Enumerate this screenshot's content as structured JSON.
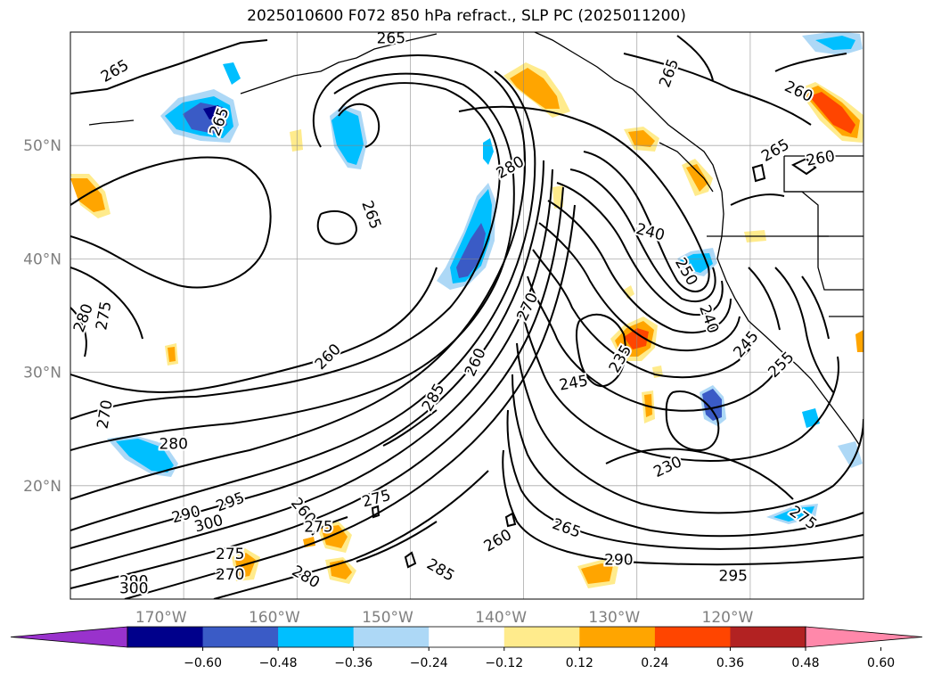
{
  "title": "2025010600 F072 850 hPa refract., SLP PC (2025011200)",
  "map": {
    "lat_labels": [
      {
        "text": "50°N",
        "lat": 50
      },
      {
        "text": "40°N",
        "lat": 40
      },
      {
        "text": "30°N",
        "lat": 30
      },
      {
        "text": "20°N",
        "lat": 20
      }
    ],
    "lon_labels": [
      {
        "text": "170°W",
        "lon": -170
      },
      {
        "text": "160°W",
        "lon": -160
      },
      {
        "text": "150°W",
        "lon": -150
      },
      {
        "text": "140°W",
        "lon": -140
      },
      {
        "text": "130°W",
        "lon": -130
      },
      {
        "text": "120°W",
        "lon": -120
      }
    ],
    "extent": {
      "lon_min": -178,
      "lon_max": -108,
      "lat_min": 10,
      "lat_max": 60
    },
    "gridlines": true,
    "contour_labels": [
      {
        "text": "265",
        "lon": -174.1,
        "lat": 56.6,
        "rot": -30
      },
      {
        "text": "265",
        "lon": -164.9,
        "lat": 52.1,
        "rot": -70
      },
      {
        "text": "265",
        "lon": -149.7,
        "lat": 59.5,
        "rot": 0
      },
      {
        "text": "265",
        "lon": -151.4,
        "lat": 43.9,
        "rot": 70
      },
      {
        "text": "280",
        "lon": -139.2,
        "lat": 48.1,
        "rot": -30
      },
      {
        "text": "265",
        "lon": -125.2,
        "lat": 56.4,
        "rot": -70
      },
      {
        "text": "260",
        "lon": -113.7,
        "lat": 54.8,
        "rot": 25
      },
      {
        "text": "265",
        "lon": -115.8,
        "lat": 49.6,
        "rot": -30
      },
      {
        "text": "260",
        "lon": -111.8,
        "lat": 48.9,
        "rot": -10
      },
      {
        "text": "240",
        "lon": -126.8,
        "lat": 42.4,
        "rot": 15
      },
      {
        "text": "250",
        "lon": -123.6,
        "lat": 38.9,
        "rot": 60
      },
      {
        "text": "240",
        "lon": -121.6,
        "lat": 34.7,
        "rot": 70
      },
      {
        "text": "245",
        "lon": -118.4,
        "lat": 32.5,
        "rot": -50
      },
      {
        "text": "255",
        "lon": -115.3,
        "lat": 30.7,
        "rot": -45
      },
      {
        "text": "270",
        "lon": -137.7,
        "lat": 35.8,
        "rot": -65
      },
      {
        "text": "260",
        "lon": -142.3,
        "lat": 30.9,
        "rot": -65
      },
      {
        "text": "245",
        "lon": -133.6,
        "lat": 29.1,
        "rot": -10
      },
      {
        "text": "235",
        "lon": -129.5,
        "lat": 31.2,
        "rot": -60
      },
      {
        "text": "230",
        "lon": -125.3,
        "lat": 21.7,
        "rot": -25
      },
      {
        "text": "285",
        "lon": -146.0,
        "lat": 27.8,
        "rot": -60
      },
      {
        "text": "280",
        "lon": -168.9,
        "lat": 23.7,
        "rot": 0
      },
      {
        "text": "290",
        "lon": -167.8,
        "lat": 17.5,
        "rot": -15
      },
      {
        "text": "295",
        "lon": -163.9,
        "lat": 18.6,
        "rot": -20
      },
      {
        "text": "300",
        "lon": -165.8,
        "lat": 16.7,
        "rot": -15
      },
      {
        "text": "260",
        "lon": -157.4,
        "lat": 17.8,
        "rot": 50
      },
      {
        "text": "275",
        "lon": -156.1,
        "lat": 16.4,
        "rot": 0
      },
      {
        "text": "275",
        "lon": -151.0,
        "lat": 18.9,
        "rot": -15
      },
      {
        "text": "275",
        "lon": -163.9,
        "lat": 14.0,
        "rot": 0
      },
      {
        "text": "270",
        "lon": -163.9,
        "lat": 12.2,
        "rot": 0
      },
      {
        "text": "280",
        "lon": -157.2,
        "lat": 12.0,
        "rot": 30
      },
      {
        "text": "290",
        "lon": -172.4,
        "lat": 11.6,
        "rot": 0
      },
      {
        "text": "300",
        "lon": -172.4,
        "lat": 11.0,
        "rot": 0
      },
      {
        "text": "260",
        "lon": -140.3,
        "lat": 15.2,
        "rot": -30
      },
      {
        "text": "265",
        "lon": -134.2,
        "lat": 16.3,
        "rot": 20
      },
      {
        "text": "285",
        "lon": -145.3,
        "lat": 12.6,
        "rot": 30
      },
      {
        "text": "290",
        "lon": -129.6,
        "lat": 13.5,
        "rot": 0
      },
      {
        "text": "295",
        "lon": -119.5,
        "lat": 12.1,
        "rot": 0
      },
      {
        "text": "275",
        "lon": -113.3,
        "lat": 17.2,
        "rot": 35
      },
      {
        "text": "270",
        "lon": -175.0,
        "lat": 26.3,
        "rot": -80
      },
      {
        "text": "280",
        "lon": -176.9,
        "lat": 34.8,
        "rot": -70
      },
      {
        "text": "275",
        "lon": -175.1,
        "lat": 35.0,
        "rot": -80
      },
      {
        "text": "260",
        "lon": -155.3,
        "lat": 31.4,
        "rot": -45
      }
    ]
  },
  "colorbar": {
    "ticks": [
      "−0.60",
      "−0.48",
      "−0.36",
      "−0.24",
      "−0.12",
      "0.12",
      "0.24",
      "0.36",
      "0.48",
      "0.60"
    ],
    "colors": [
      "#9932cc",
      "#00008b",
      "#3a5bc6",
      "#00bfff",
      "#add8f6",
      "#ffffff",
      "#ffeb8c",
      "#ffa500",
      "#ff4500",
      "#b22222",
      "#ff88aa"
    ]
  }
}
